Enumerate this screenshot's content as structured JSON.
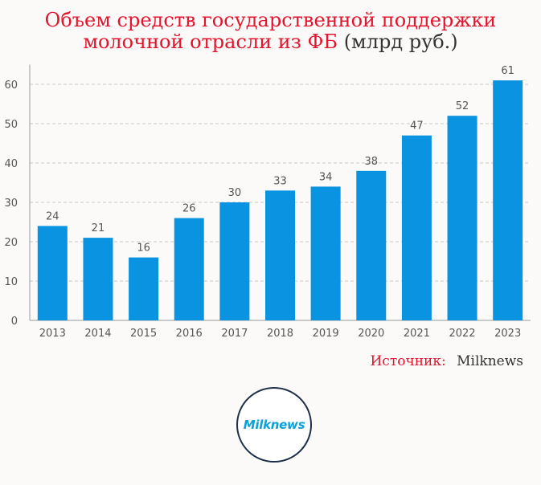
{
  "title": {
    "line1": "Объем средств государственной поддержки",
    "line2": "молочной отрасли из ФБ",
    "unit": "(млрд руб.)"
  },
  "source": {
    "label": "Источник:",
    "name": "Milknews"
  },
  "logo": {
    "text": "Milknews"
  },
  "colors": {
    "bar": "#0a93e0",
    "title": "#e4142c",
    "grid": "#c8c8c8",
    "tick_text": "#555555"
  },
  "chart_data": {
    "type": "bar",
    "categories": [
      "2013",
      "2014",
      "2015",
      "2016",
      "2017",
      "2018",
      "2019",
      "2020",
      "2021",
      "2022",
      "2023"
    ],
    "values": [
      24,
      21,
      16,
      26,
      30,
      33,
      34,
      38,
      47,
      52,
      61
    ],
    "data_labels": [
      "24",
      "21",
      "16",
      "26",
      "30",
      "33",
      "34",
      "38",
      "47",
      "52",
      "61"
    ],
    "title": "Объем средств государственной поддержки молочной отрасли из ФБ (млрд руб.)",
    "xlabel": "",
    "ylabel": "",
    "ylim": [
      0,
      65
    ],
    "yticks": [
      0,
      10,
      20,
      30,
      40,
      50,
      60
    ],
    "ytick_labels": [
      "0",
      "10",
      "20",
      "30",
      "40",
      "50",
      "60"
    ],
    "grid": true,
    "legend": "none"
  }
}
